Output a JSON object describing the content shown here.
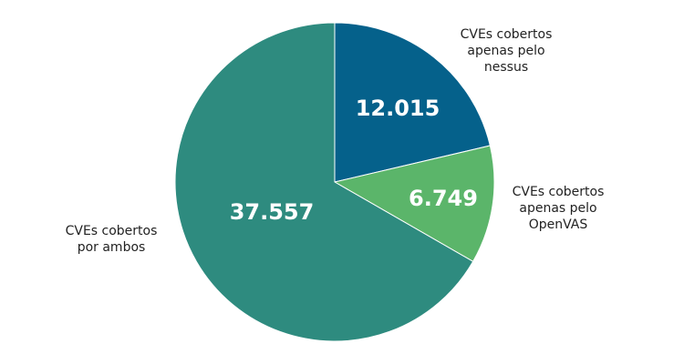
{
  "chart_data": {
    "type": "pie",
    "slices": [
      {
        "label": [
          "CVEs cobertos",
          "apenas pelo",
          "nessus"
        ],
        "value": 12015,
        "value_text": "12.015",
        "color": "#05618b"
      },
      {
        "label": [
          "CVEs cobertos",
          "apenas pelo",
          "OpenVAS"
        ],
        "value": 6749,
        "value_text": "6.749",
        "color": "#5bb56a"
      },
      {
        "label": [
          "CVEs cobertos",
          "por ambos"
        ],
        "value": 37557,
        "value_text": "37.557",
        "color": "#2e8b7f"
      }
    ],
    "start_angle_deg": 0,
    "direction": "clockwise"
  }
}
